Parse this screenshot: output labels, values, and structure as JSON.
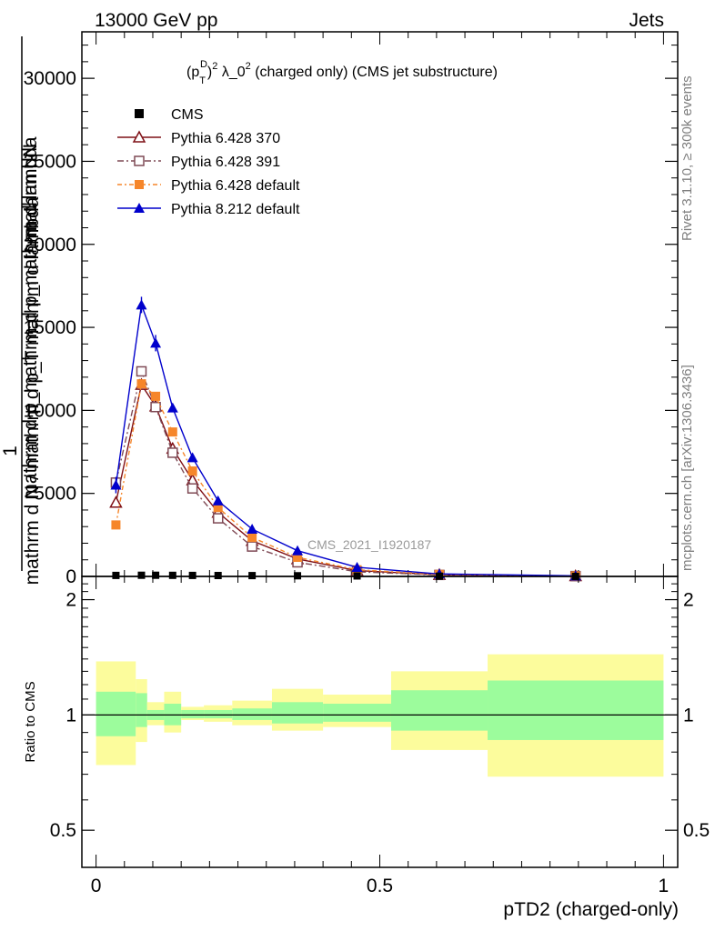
{
  "header": {
    "energy_label": "13000 GeV pp",
    "category_label": "Jets"
  },
  "side": {
    "rivet_label": "Rivet 3.1.10, ≥ 300k events",
    "source_label": "mcplots.cern.ch [arXiv:1306.3436]"
  },
  "chart_data": {
    "type": "line",
    "title_main": "(p",
    "title_sub": "T",
    "title_sup": "D",
    "title_sup2": "2",
    "title_tail": " λ_0",
    "title_sup3": "2",
    "title_end": " (charged only) (CMS jet substructure)",
    "analysis_label": "CMS_2021_I1920187",
    "ylabel_numerator": "1",
    "ylabel_num_text": "mathrm dN",
    "ylabel_mid": "mathrm d p_mathrm d p_mathrm d lambda",
    "ylabel_den": "mathrm d N / mathrm d p_T mathrm d lambda",
    "xlabel": "pTD2 (charged-only)",
    "ratio_ylabel": "Ratio to CMS",
    "xlim": [
      -0.025,
      1.025
    ],
    "ylim": [
      0,
      32800
    ],
    "ratio_ylim": [
      0.4,
      2.3
    ],
    "x_ticks": [
      {
        "value": 0,
        "label": "0"
      },
      {
        "value": 0.5,
        "label": "0.5"
      },
      {
        "value": 1,
        "label": "1"
      }
    ],
    "y_ticks": [
      {
        "value": 0,
        "label": "0"
      },
      {
        "value": 5000,
        "label": "5000"
      },
      {
        "value": 10000,
        "label": "10000"
      },
      {
        "value": 15000,
        "label": "15000"
      },
      {
        "value": 20000,
        "label": "20000"
      },
      {
        "value": 25000,
        "label": "25000"
      },
      {
        "value": 30000,
        "label": "30000"
      }
    ],
    "ratio_ticks": [
      {
        "value": 0.5,
        "label": "0.5"
      },
      {
        "value": 1,
        "label": "1"
      },
      {
        "value": 2,
        "label": "2"
      }
    ],
    "bin_edges": [
      0,
      0.07,
      0.09,
      0.12,
      0.15,
      0.19,
      0.24,
      0.31,
      0.4,
      0.52,
      0.69,
      1.0
    ],
    "x": [
      0.035,
      0.08,
      0.105,
      0.135,
      0.17,
      0.215,
      0.275,
      0.355,
      0.46,
      0.605,
      0.845
    ],
    "cms_values": [
      60,
      70,
      70,
      65,
      60,
      55,
      50,
      40,
      30,
      15,
      5
    ],
    "band_inner": [
      [
        0.88,
        1.15
      ],
      [
        0.93,
        1.14
      ],
      [
        0.97,
        1.03
      ],
      [
        0.94,
        1.07
      ],
      [
        0.98,
        1.03
      ],
      [
        0.98,
        1.03
      ],
      [
        0.97,
        1.04
      ],
      [
        0.95,
        1.08
      ],
      [
        0.96,
        1.07
      ],
      [
        0.91,
        1.16
      ],
      [
        0.86,
        1.23
      ]
    ],
    "band_outer": [
      [
        0.74,
        1.38
      ],
      [
        0.85,
        1.24
      ],
      [
        0.94,
        1.08
      ],
      [
        0.9,
        1.15
      ],
      [
        0.97,
        1.05
      ],
      [
        0.96,
        1.06
      ],
      [
        0.94,
        1.09
      ],
      [
        0.91,
        1.17
      ],
      [
        0.93,
        1.13
      ],
      [
        0.81,
        1.3
      ],
      [
        0.69,
        1.44
      ]
    ],
    "series": [
      {
        "name": "Pythia 6.428 370",
        "color": "#7f1016",
        "marker": "triangle-open",
        "dash": "",
        "values": [
          4450,
          11550,
          10250,
          7700,
          5800,
          3850,
          2150,
          1050,
          350,
          100,
          25
        ]
      },
      {
        "name": "Pythia 6.428 391",
        "color": "#7f4a55",
        "marker": "square-open",
        "dash": "7,3,2,3",
        "values": [
          5650,
          12350,
          10200,
          7450,
          5300,
          3500,
          1800,
          850,
          280,
          90,
          20
        ]
      },
      {
        "name": "Pythia 6.428 default",
        "color": "#f6862a",
        "marker": "square-filled",
        "dash": "5,3,2,3",
        "values": [
          3100,
          11600,
          10850,
          8700,
          6350,
          4150,
          2350,
          1150,
          400,
          120,
          30
        ]
      },
      {
        "name": "Pythia 8.212 default",
        "color": "#0000cc",
        "marker": "triangle-filled",
        "dash": "",
        "values": [
          5500,
          16350,
          14050,
          10150,
          7150,
          4550,
          2850,
          1550,
          550,
          150,
          35
        ]
      }
    ],
    "legend": [
      {
        "label": "CMS",
        "marker": "square-filled",
        "color": "#000000"
      },
      {
        "label": "Pythia 6.428 370",
        "marker": "triangle-open",
        "color": "#7f1016"
      },
      {
        "label": "Pythia 6.428 391",
        "marker": "square-open",
        "color": "#7f4a55"
      },
      {
        "label": "Pythia 6.428 default",
        "marker": "square-filled",
        "color": "#f6862a"
      },
      {
        "label": "Pythia 8.212 default",
        "marker": "triangle-filled",
        "color": "#0000cc"
      }
    ],
    "colors": {
      "band_inner": "#9cfc9c",
      "band_outer": "#fcfc9c"
    }
  }
}
